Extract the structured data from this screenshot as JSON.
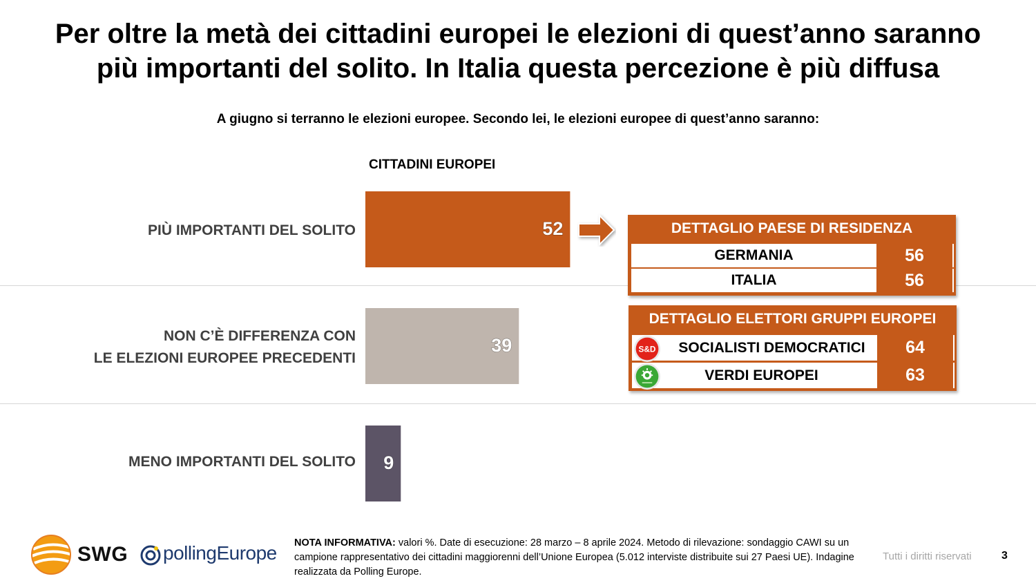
{
  "title": {
    "line1": "Per oltre la metà dei cittadini europei le elezioni di quest’anno saranno",
    "line2": "più importanti del solito. In Italia questa percezione è più diffusa"
  },
  "question": "A giugno si terranno le elezioni europee. Secondo lei, le elezioni europee di quest’anno saranno:",
  "chart_data": {
    "type": "bar",
    "orientation": "horizontal",
    "series_header": "CITTADINI EUROPEI",
    "categories": [
      "PIÙ IMPORTANTI DEL SOLITO",
      "NON C’È DIFFERENZA CON LE ELEZIONI EUROPEE PRECEDENTI",
      "MENO IMPORTANTI DEL SOLITO"
    ],
    "category_lines": [
      [
        "PIÙ IMPORTANTI DEL SOLITO"
      ],
      [
        "NON C’È DIFFERENZA CON",
        "LE ELEZIONI EUROPEE PRECEDENTI"
      ],
      [
        "MENO IMPORTANTI DEL SOLITO"
      ]
    ],
    "values": [
      52,
      39,
      9
    ],
    "colors": [
      "#c55a1a",
      "#bfb5ad",
      "#5c5466"
    ],
    "xlim": [
      0,
      100
    ],
    "grid": false
  },
  "panel_country": {
    "title": "DETTAGLIO PAESE DI RESIDENZA",
    "rows": [
      {
        "label": "GERMANIA",
        "value": "56"
      },
      {
        "label": "ITALIA",
        "value": "56"
      }
    ]
  },
  "panel_groups": {
    "title": "DETTAGLIO ELETTORI GRUPPI EUROPEI",
    "rows": [
      {
        "label": "SOCIALISTI DEMOCRATICI",
        "value": "64",
        "icon": "s-and-d-logo"
      },
      {
        "label": "VERDI EUROPEI",
        "value": "63",
        "icon": "greens-logo"
      }
    ]
  },
  "logos": {
    "s_and_d_text": "S&D",
    "swg": "SWG",
    "polling_europe": "pollingEurope"
  },
  "footer": {
    "note_label": "NOTA INFORMATIVA:",
    "note_text": " valori %. Date di esecuzione: 28 marzo – 8 aprile 2024. Metodo di rilevazione: sondaggio CAWI su un campione rappresentativo dei cittadini maggiorenni dell’Unione Europea (5.012 interviste distribuite sui 27 Paesi UE). Indagine realizzata da Polling Europe.",
    "rights": "Tutti i diritti riservati",
    "page_number": "3"
  },
  "colors": {
    "accent": "#c55a1a",
    "neutral_bar": "#bfb5ad",
    "dark_bar": "#5c5466"
  }
}
